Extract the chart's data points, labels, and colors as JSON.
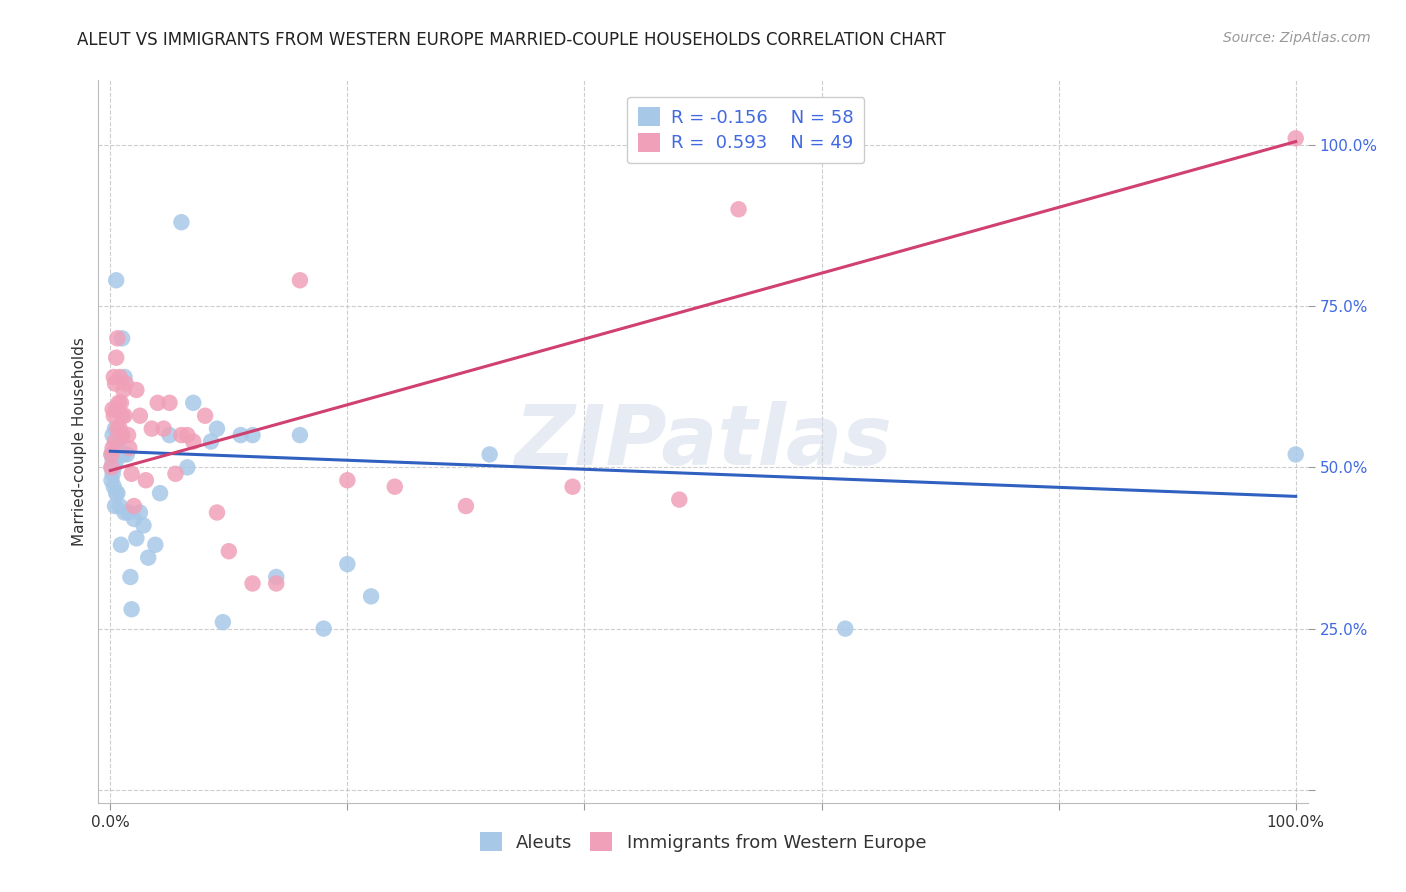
{
  "title": "ALEUT VS IMMIGRANTS FROM WESTERN EUROPE MARRIED-COUPLE HOUSEHOLDS CORRELATION CHART",
  "source": "Source: ZipAtlas.com",
  "ylabel": "Married-couple Households",
  "legend_label1": "Aleuts",
  "legend_label2": "Immigrants from Western Europe",
  "R1": -0.156,
  "N1": 58,
  "R2": 0.593,
  "N2": 49,
  "color_blue": "#A8C8E8",
  "color_pink": "#F0A0B8",
  "color_line_blue": "#3060C0",
  "color_line_pink": "#D04070",
  "background_color": "#FFFFFF",
  "watermark_text": "ZIPatlas",
  "blue_line_y0": 0.525,
  "blue_line_y1": 0.455,
  "pink_line_y0": 0.495,
  "pink_line_y1": 1.005,
  "scatter_blue_x": [
    0.001,
    0.001,
    0.001,
    0.002,
    0.002,
    0.002,
    0.003,
    0.003,
    0.003,
    0.004,
    0.004,
    0.004,
    0.005,
    0.005,
    0.005,
    0.006,
    0.006,
    0.007,
    0.007,
    0.007,
    0.008,
    0.008,
    0.009,
    0.009,
    0.01,
    0.01,
    0.01,
    0.011,
    0.012,
    0.012,
    0.014,
    0.015,
    0.017,
    0.018,
    0.02,
    0.022,
    0.025,
    0.028,
    0.032,
    0.038,
    0.042,
    0.05,
    0.06,
    0.065,
    0.07,
    0.085,
    0.09,
    0.095,
    0.11,
    0.12,
    0.14,
    0.16,
    0.18,
    0.2,
    0.22,
    0.32,
    0.62,
    1.0
  ],
  "scatter_blue_y": [
    0.52,
    0.5,
    0.48,
    0.55,
    0.51,
    0.49,
    0.52,
    0.5,
    0.47,
    0.52,
    0.56,
    0.44,
    0.79,
    0.51,
    0.46,
    0.53,
    0.46,
    0.55,
    0.54,
    0.52,
    0.52,
    0.44,
    0.55,
    0.38,
    0.55,
    0.52,
    0.7,
    0.52,
    0.64,
    0.43,
    0.52,
    0.43,
    0.33,
    0.28,
    0.42,
    0.39,
    0.43,
    0.41,
    0.36,
    0.38,
    0.46,
    0.55,
    0.88,
    0.5,
    0.6,
    0.54,
    0.56,
    0.26,
    0.55,
    0.55,
    0.33,
    0.55,
    0.25,
    0.35,
    0.3,
    0.52,
    0.25,
    0.52
  ],
  "scatter_pink_x": [
    0.001,
    0.001,
    0.002,
    0.002,
    0.003,
    0.003,
    0.004,
    0.004,
    0.005,
    0.005,
    0.006,
    0.006,
    0.007,
    0.008,
    0.008,
    0.009,
    0.01,
    0.01,
    0.011,
    0.012,
    0.013,
    0.015,
    0.016,
    0.018,
    0.02,
    0.022,
    0.025,
    0.03,
    0.035,
    0.04,
    0.045,
    0.05,
    0.055,
    0.06,
    0.065,
    0.07,
    0.08,
    0.09,
    0.1,
    0.12,
    0.14,
    0.16,
    0.2,
    0.24,
    0.3,
    0.39,
    0.48,
    0.53,
    1.0
  ],
  "scatter_pink_y": [
    0.52,
    0.5,
    0.59,
    0.53,
    0.64,
    0.58,
    0.63,
    0.54,
    0.67,
    0.59,
    0.7,
    0.56,
    0.6,
    0.64,
    0.56,
    0.6,
    0.58,
    0.55,
    0.62,
    0.58,
    0.63,
    0.55,
    0.53,
    0.49,
    0.44,
    0.62,
    0.58,
    0.48,
    0.56,
    0.6,
    0.56,
    0.6,
    0.49,
    0.55,
    0.55,
    0.54,
    0.58,
    0.43,
    0.37,
    0.32,
    0.32,
    0.79,
    0.48,
    0.47,
    0.44,
    0.47,
    0.45,
    0.9,
    1.01
  ],
  "xlim": [
    -0.01,
    1.01
  ],
  "ylim": [
    -0.02,
    1.1
  ],
  "yticks": [
    0.0,
    0.25,
    0.5,
    0.75,
    1.0
  ],
  "xtick_positions": [
    0.0,
    0.2,
    0.4,
    0.6,
    0.8,
    1.0
  ],
  "title_fontsize": 12,
  "source_fontsize": 10,
  "ylabel_fontsize": 11,
  "tick_fontsize": 11,
  "legend_fontsize": 13
}
